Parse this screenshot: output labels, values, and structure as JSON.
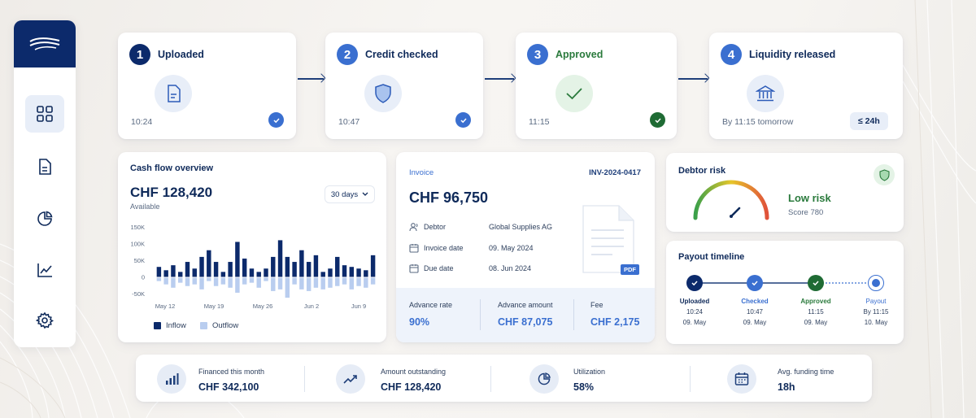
{
  "colors": {
    "navy": "#0c2a6b",
    "blue": "#3a6fd0",
    "green": "#2a7a3c",
    "inflow": "#0c2a6b",
    "outflow": "#b9cdef"
  },
  "sidebar": {
    "logo_icon": "waves-logo-icon",
    "items": [
      {
        "name": "dashboard",
        "icon": "grid-icon",
        "active": true
      },
      {
        "name": "documents",
        "icon": "document-icon",
        "active": false
      },
      {
        "name": "analytics",
        "icon": "pie-chart-icon",
        "active": false
      },
      {
        "name": "reports",
        "icon": "line-chart-icon",
        "active": false
      },
      {
        "name": "settings",
        "icon": "gear-icon",
        "active": false
      }
    ]
  },
  "steps": [
    {
      "num": "1",
      "title": "Uploaded",
      "time": "10:24",
      "icon": "document-icon"
    },
    {
      "num": "2",
      "title": "Credit checked",
      "time": "10:47",
      "icon": "shield-icon"
    },
    {
      "num": "3",
      "title": "Approved",
      "time": "11:15",
      "icon": "checkmark-icon"
    },
    {
      "num": "4",
      "title": "Liquidity released",
      "time": "By 11:15 tomorrow",
      "badge": "≤ 24h",
      "icon": "bank-icon"
    }
  ],
  "cashflow": {
    "title": "Cash flow overview",
    "amount": "CHF 128,420",
    "sub": "Available",
    "range": "30 days",
    "legend_inflow": "Inflow",
    "legend_outflow": "Outflow"
  },
  "chart_data": {
    "type": "bar",
    "yticks": [
      "150K",
      "100K",
      "50K",
      "0",
      "-50K"
    ],
    "ylim": [
      -50,
      150
    ],
    "xticks": [
      "May 12",
      "May 19",
      "May 26",
      "Jun 2",
      "Jun 9"
    ],
    "series": [
      {
        "name": "Inflow",
        "values": [
          30,
          20,
          35,
          15,
          45,
          25,
          60,
          80,
          45,
          15,
          45,
          105,
          55,
          25,
          15,
          25,
          60,
          110,
          60,
          45,
          80,
          45,
          65,
          15,
          25,
          60,
          35,
          30,
          25,
          20,
          65
        ]
      },
      {
        "name": "Outflow",
        "values": [
          -10,
          -20,
          -30,
          -15,
          -25,
          -20,
          -35,
          -10,
          -25,
          -20,
          -30,
          -45,
          -20,
          -15,
          -30,
          -10,
          -40,
          -35,
          -60,
          -20,
          -35,
          -40,
          -30,
          -35,
          -30,
          -25,
          -20,
          -35,
          -25,
          -30,
          -20
        ]
      }
    ]
  },
  "invoice": {
    "label": "Invoice",
    "number": "INV-2024-0417",
    "amount": "CHF 96,750",
    "rows": [
      {
        "label": "Debtor",
        "value": "Global Supplies AG",
        "icon": "user-icon"
      },
      {
        "label": "Invoice date",
        "value": "09. May 2024",
        "icon": "calendar-icon"
      },
      {
        "label": "Due date",
        "value": "08. Jun 2024",
        "icon": "calendar-icon"
      }
    ],
    "pdf": "PDF",
    "advance_rate_label": "Advance rate",
    "advance_rate": "90%",
    "advance_amount_label": "Advance amount",
    "advance_amount": "CHF 87,075",
    "fee_label": "Fee",
    "fee": "CHF 2,175"
  },
  "debtor": {
    "title": "Debtor risk",
    "risk": "Low risk",
    "score": "Score 780"
  },
  "payout": {
    "title": "Payout timeline",
    "steps": [
      {
        "name": "Uploaded",
        "time": "10:24",
        "date": "09. May"
      },
      {
        "name": "Checked",
        "time": "10:47",
        "date": "09. May"
      },
      {
        "name": "Approved",
        "time": "11:15",
        "date": "09. May"
      },
      {
        "name": "Payout",
        "time": "By 11:15",
        "date": "10. May"
      }
    ]
  },
  "kpis": [
    {
      "label": "Financed this month",
      "value": "CHF 342,100",
      "icon": "bar-chart-icon"
    },
    {
      "label": "Amount outstanding",
      "value": "CHF 128,420",
      "icon": "trend-up-icon"
    },
    {
      "label": "Utilization",
      "value": "58%",
      "icon": "pie-chart-icon"
    },
    {
      "label": "Avg. funding time",
      "value": "18h",
      "icon": "calendar-icon"
    }
  ]
}
